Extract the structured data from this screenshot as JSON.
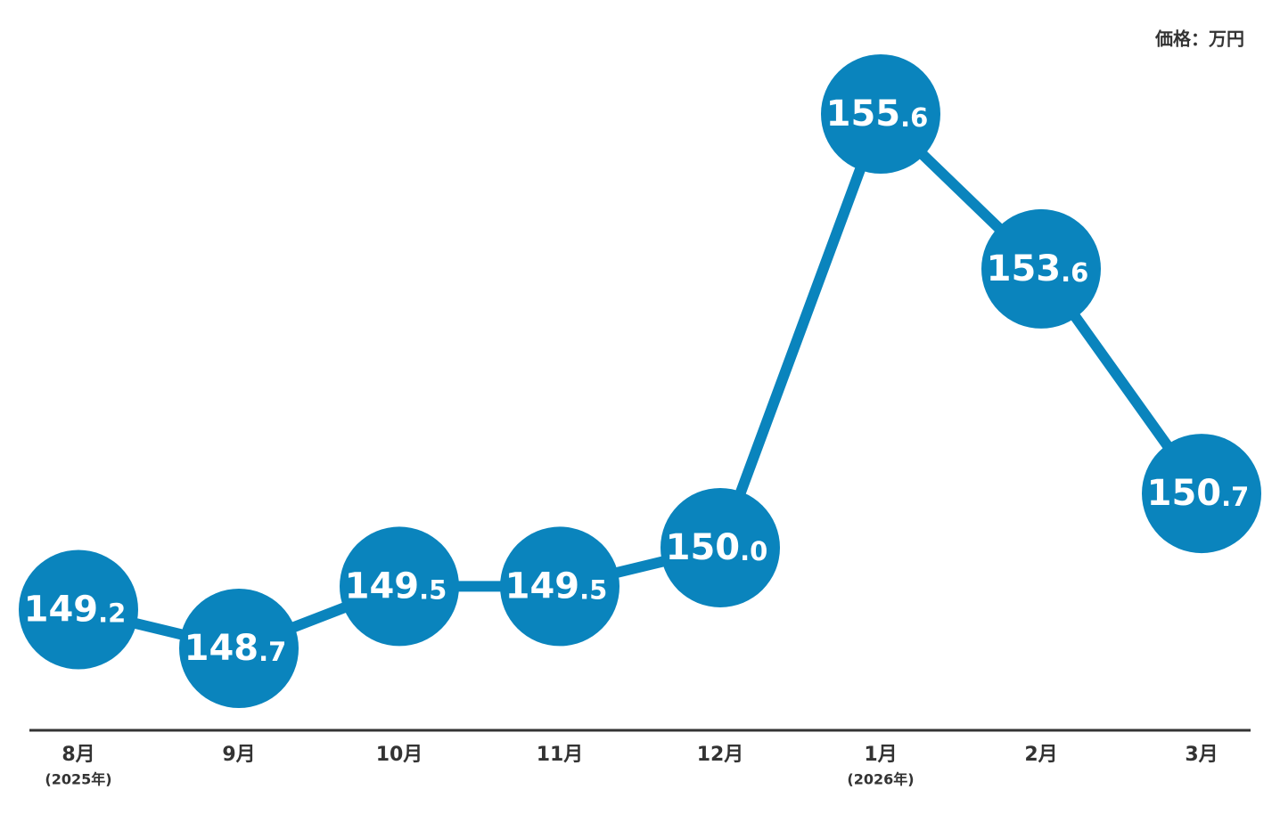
{
  "chart_data": {
    "type": "line",
    "unit_label": "価格：万円",
    "categories": [
      "8月",
      "9月",
      "10月",
      "11月",
      "12月",
      "1月",
      "2月",
      "3月"
    ],
    "category_notes": [
      "(2025年)",
      null,
      null,
      null,
      null,
      "(2026年)",
      null,
      null
    ],
    "series": [
      {
        "name": null,
        "color": "#0a84bd",
        "values": [
          149.2,
          148.7,
          149.5,
          149.5,
          150.0,
          155.6,
          153.6,
          150.7
        ],
        "value_labels": [
          "149.2",
          "148.7",
          "149.5",
          "149.5",
          "150.0",
          "155.6",
          "153.6",
          "150.7"
        ]
      }
    ]
  }
}
